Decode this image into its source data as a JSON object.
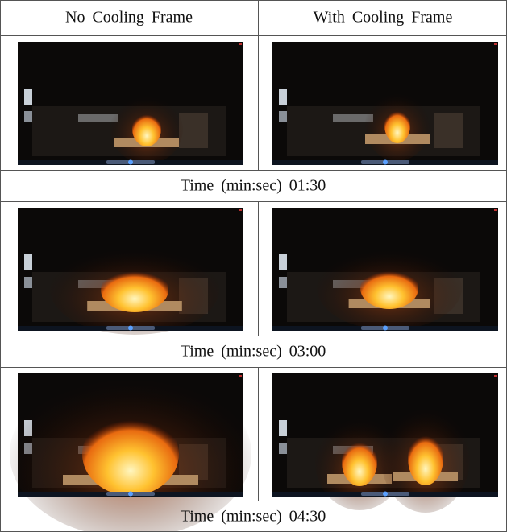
{
  "table": {
    "header": [
      "No Cooling Frame",
      "With Cooling Frame"
    ],
    "rows": [
      {
        "caption": "Time (min:sec) 01:30"
      },
      {
        "caption": "Time (min:sec) 03:00"
      },
      {
        "caption": "Time (min:sec) 04:30"
      }
    ]
  }
}
